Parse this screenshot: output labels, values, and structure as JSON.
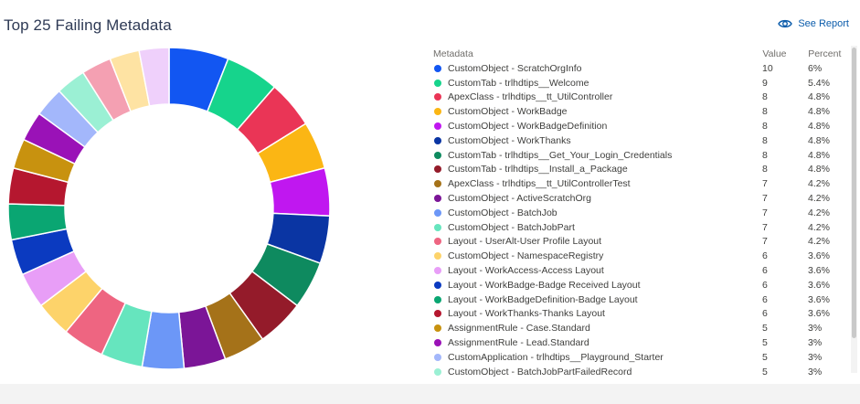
{
  "title": "Top 25 Failing Metadata",
  "see_report": {
    "label": "See Report",
    "icon": "eye-icon"
  },
  "table": {
    "headers": {
      "metadata": "Metadata",
      "value": "Value",
      "percent": "Percent"
    }
  },
  "chart_data": {
    "type": "pie",
    "variant": "donut",
    "title": "Top 25 Failing Metadata",
    "legend_placement": "right-table",
    "slices": [
      {
        "label": "CustomObject - ScratchOrgInfo",
        "value": 10,
        "percent": "6%",
        "color": "#1256f2"
      },
      {
        "label": "CustomTab - trlhdtips__Welcome",
        "value": 9,
        "percent": "5.4%",
        "color": "#16d48c"
      },
      {
        "label": "ApexClass - trlhdtips__tt_UtilController",
        "value": 8,
        "percent": "4.8%",
        "color": "#ea3556"
      },
      {
        "label": "CustomObject - WorkBadge",
        "value": 8,
        "percent": "4.8%",
        "color": "#fbb614"
      },
      {
        "label": "CustomObject - WorkBadgeDefinition",
        "value": 8,
        "percent": "4.8%",
        "color": "#c017f0"
      },
      {
        "label": "CustomObject - WorkThanks",
        "value": 8,
        "percent": "4.8%",
        "color": "#0a35a3"
      },
      {
        "label": "CustomTab - trlhdtips__Get_Your_Login_Credentials",
        "value": 8,
        "percent": "4.8%",
        "color": "#0e8a5f"
      },
      {
        "label": "CustomTab - trlhdtips__Install_a_Package",
        "value": 8,
        "percent": "4.8%",
        "color": "#941b2a"
      },
      {
        "label": "ApexClass - trlhdtips__tt_UtilControllerTest",
        "value": 7,
        "percent": "4.2%",
        "color": "#a57219"
      },
      {
        "label": "CustomObject - ActiveScratchOrg",
        "value": 7,
        "percent": "4.2%",
        "color": "#7b1597"
      },
      {
        "label": "CustomObject - BatchJob",
        "value": 7,
        "percent": "4.2%",
        "color": "#6c97f7"
      },
      {
        "label": "CustomObject - BatchJobPart",
        "value": 7,
        "percent": "4.2%",
        "color": "#66e5be"
      },
      {
        "label": "Layout - UserAlt-User Profile Layout",
        "value": 7,
        "percent": "4.2%",
        "color": "#ee6581"
      },
      {
        "label": "CustomObject - NamespaceRegistry",
        "value": 6,
        "percent": "3.6%",
        "color": "#fdd36a"
      },
      {
        "label": "Layout - WorkAccess-Access Layout",
        "value": 6,
        "percent": "3.6%",
        "color": "#e89ef7"
      },
      {
        "label": "Layout - WorkBadge-Badge Received Layout",
        "value": 6,
        "percent": "3.6%",
        "color": "#0b3ac0"
      },
      {
        "label": "Layout - WorkBadgeDefinition-Badge Layout",
        "value": 6,
        "percent": "3.6%",
        "color": "#0aa672"
      },
      {
        "label": "Layout - WorkThanks-Thanks Layout",
        "value": 6,
        "percent": "3.6%",
        "color": "#b5172f"
      },
      {
        "label": "AssignmentRule - Case.Standard",
        "value": 5,
        "percent": "3%",
        "color": "#c8920f"
      },
      {
        "label": "AssignmentRule - Lead.Standard",
        "value": 5,
        "percent": "3%",
        "color": "#9a12b7"
      },
      {
        "label": "CustomApplication - trlhdtips__Playground_Starter",
        "value": 5,
        "percent": "3%",
        "color": "#a3b7fb"
      },
      {
        "label": "CustomObject - BatchJobPartFailedRecord",
        "value": 5,
        "percent": "3%",
        "color": "#9bf0d4"
      },
      {
        "value": 5,
        "color": "#f4a0b2"
      },
      {
        "value": 5,
        "color": "#fee3a3"
      },
      {
        "value": 5,
        "color": "#efd0fb"
      }
    ]
  }
}
